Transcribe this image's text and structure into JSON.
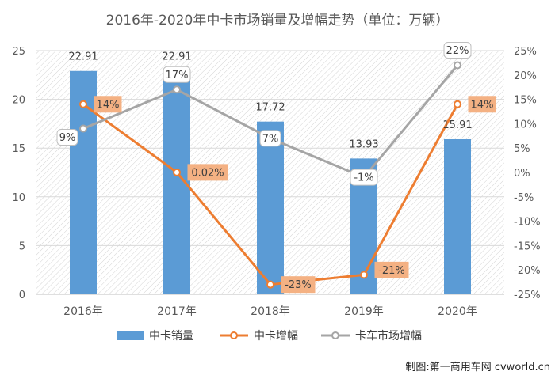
{
  "chart_data": {
    "type": "bar",
    "title": "2016年-2020年中卡市场销量及增幅走势（单位：万辆）",
    "categories": [
      "2016年",
      "2017年",
      "2018年",
      "2019年",
      "2020年"
    ],
    "ylim": [
      0,
      25
    ],
    "yticks": [
      0,
      5,
      10,
      15,
      20,
      25
    ],
    "y2lim": [
      -25,
      25
    ],
    "y2ticks": [
      -25,
      -20,
      -15,
      -10,
      -5,
      0,
      5,
      10,
      15,
      20,
      25
    ],
    "series": [
      {
        "name": "中卡销量",
        "type": "bar",
        "axis": "left",
        "color": "#5b9bd5",
        "values": [
          22.91,
          22.91,
          17.72,
          13.93,
          15.91
        ],
        "labels": [
          "22.91",
          "22.91",
          "17.72",
          "13.93",
          "15.91"
        ]
      },
      {
        "name": "中卡增幅",
        "type": "line",
        "axis": "right",
        "color": "#ed7d31",
        "label_bg": "#f4b183",
        "values": [
          14,
          0.02,
          -23,
          -21,
          14
        ],
        "labels": [
          "14%",
          "0.02%",
          "-23%",
          "-21%",
          "14%"
        ]
      },
      {
        "name": "卡车市场增幅",
        "type": "line",
        "axis": "right",
        "color": "#a5a5a5",
        "label_bg": "#ffffff",
        "values": [
          9,
          17,
          7,
          -1,
          22
        ],
        "labels": [
          "9%",
          "17%",
          "7%",
          "-1%",
          "22%"
        ]
      }
    ],
    "grid": true,
    "legend_position": "bottom",
    "credit": "制图:第一商用车网 cvworld.cn"
  }
}
